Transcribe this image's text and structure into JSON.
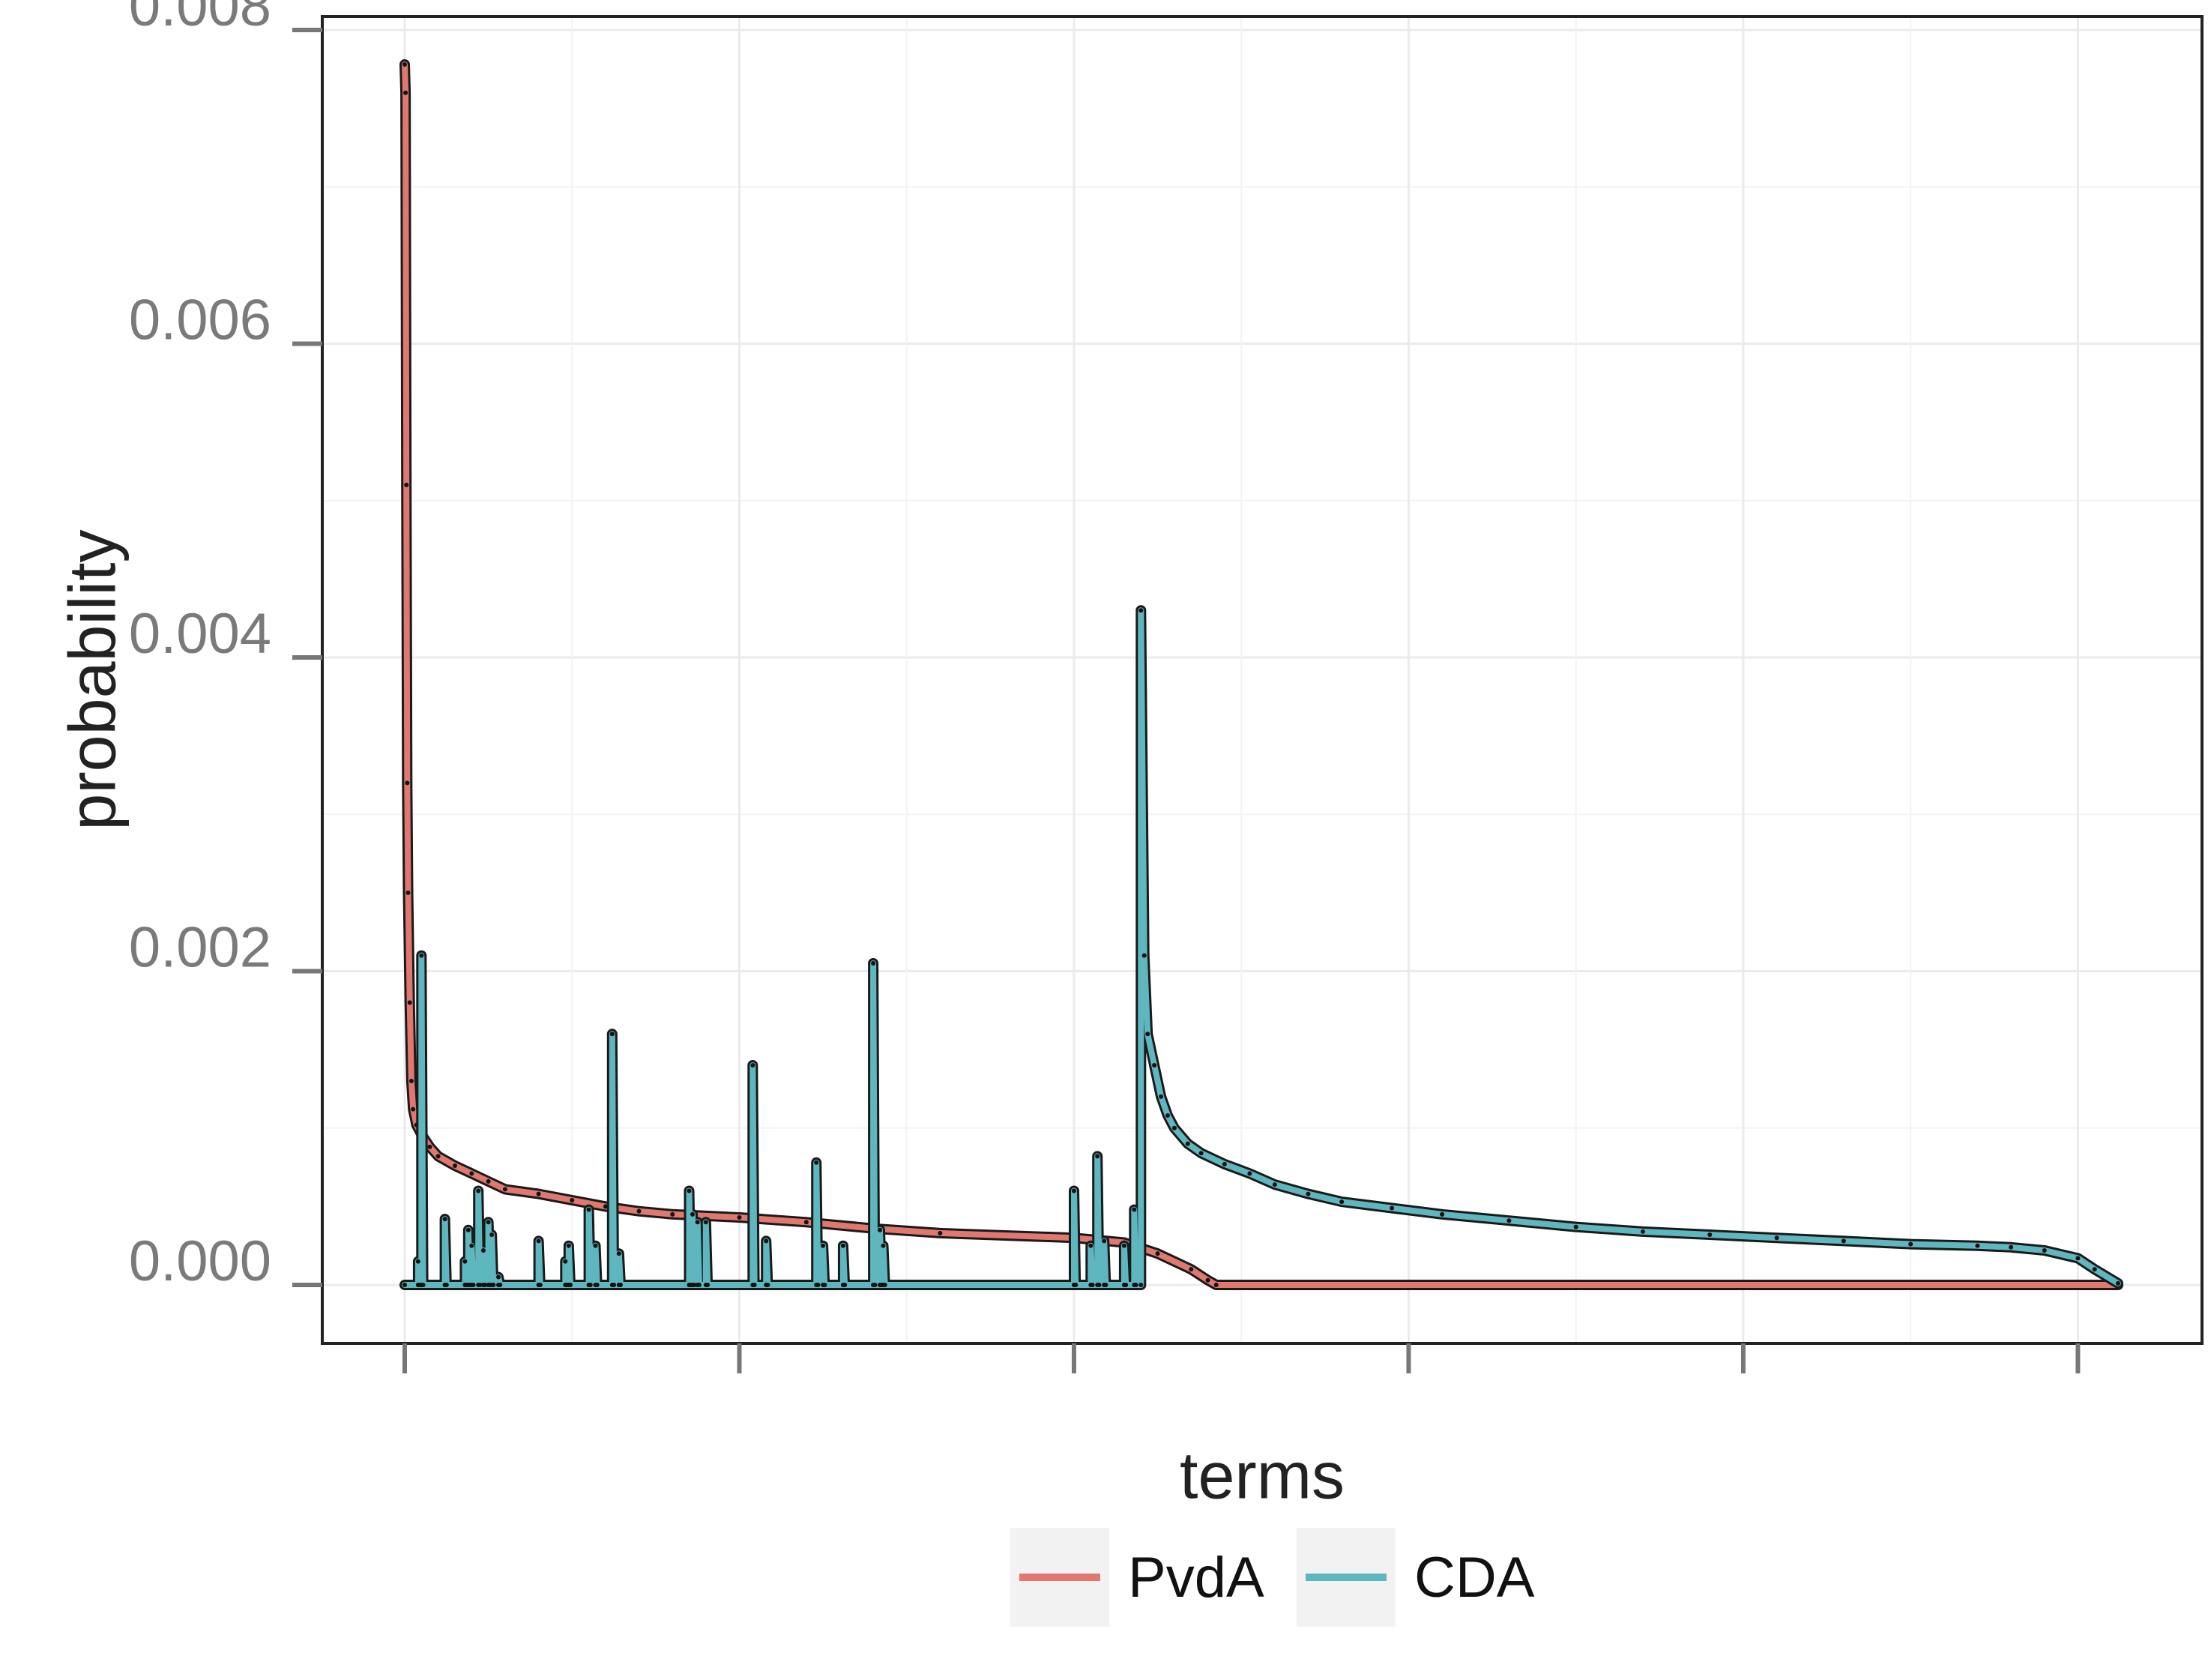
{
  "chart_data": {
    "type": "line",
    "title": "",
    "xlabel": "terms",
    "ylabel": "probability",
    "ylim": [
      0,
      0.008
    ],
    "yticks": [
      "0.000",
      "0.002",
      "0.004",
      "0.006",
      "0.008"
    ],
    "xticks": [
      "",
      "",
      "",
      "",
      "",
      ""
    ],
    "x_range": [
      0,
      1024
    ],
    "grid": true,
    "legend": {
      "position": "bottom"
    },
    "series": [
      {
        "name": "PvdA",
        "color": "#E07870",
        "points": [
          [
            0,
            0.00778
          ],
          [
            0.5,
            0.0076
          ],
          [
            1,
            0.0051
          ],
          [
            1.5,
            0.0032
          ],
          [
            2,
            0.0025
          ],
          [
            3,
            0.0018
          ],
          [
            4,
            0.0013
          ],
          [
            5,
            0.00112
          ],
          [
            7,
            0.00102
          ],
          [
            10,
            0.00096
          ],
          [
            15,
            0.00088
          ],
          [
            20,
            0.00082
          ],
          [
            30,
            0.00076
          ],
          [
            40,
            0.00071
          ],
          [
            50,
            0.00066
          ],
          [
            60,
            0.00061
          ],
          [
            80,
            0.00058
          ],
          [
            100,
            0.00054
          ],
          [
            120,
            0.0005
          ],
          [
            140,
            0.00047
          ],
          [
            160,
            0.00045
          ],
          [
            200,
            0.00043
          ],
          [
            240,
            0.0004
          ],
          [
            280,
            0.00036
          ],
          [
            320,
            0.00033
          ],
          [
            400,
            0.0003
          ],
          [
            430,
            0.00027
          ],
          [
            450,
            0.0002
          ],
          [
            470,
            0.0001
          ],
          [
            480,
            3e-05
          ],
          [
            485,
            0.0
          ],
          [
            1024,
            0.0
          ]
        ]
      },
      {
        "name": "CDA",
        "color": "#5EB7BF",
        "points": [
          [
            0,
            0.0
          ],
          [
            8,
            0.0
          ],
          [
            8,
            0.00015
          ],
          [
            9,
            0.0
          ],
          [
            10,
            0.0
          ],
          [
            10,
            0.0021
          ],
          [
            11,
            0.0
          ],
          [
            24,
            0.0
          ],
          [
            24,
            0.00042
          ],
          [
            25,
            0.0
          ],
          [
            36,
            0.0
          ],
          [
            36,
            0.00015
          ],
          [
            37,
            0.0
          ],
          [
            38,
            0.0
          ],
          [
            38,
            0.00035
          ],
          [
            39,
            0.0
          ],
          [
            40,
            0.0
          ],
          [
            40,
            0.00025
          ],
          [
            41,
            0.0
          ],
          [
            44,
            0.0
          ],
          [
            44,
            0.0006
          ],
          [
            45,
            0.0
          ],
          [
            47,
            0.0
          ],
          [
            47,
            0.00022
          ],
          [
            48,
            0.0
          ],
          [
            50,
            0.0
          ],
          [
            50,
            0.0004
          ],
          [
            51,
            0.0
          ],
          [
            52,
            0.0
          ],
          [
            52,
            0.00032
          ],
          [
            53,
            0.0
          ],
          [
            56,
            0.0
          ],
          [
            56,
            5e-05
          ],
          [
            57,
            0.0
          ],
          [
            80,
            0.0
          ],
          [
            80,
            0.00028
          ],
          [
            81,
            0.0
          ],
          [
            96,
            0.0
          ],
          [
            96,
            0.00015
          ],
          [
            97,
            0.0
          ],
          [
            98,
            0.0
          ],
          [
            98,
            0.00025
          ],
          [
            99,
            0.0
          ],
          [
            110,
            0.0
          ],
          [
            110,
            0.00048
          ],
          [
            111,
            0.0
          ],
          [
            114,
            0.0
          ],
          [
            114,
            0.00025
          ],
          [
            115,
            0.0
          ],
          [
            124,
            0.0
          ],
          [
            124,
            0.0016
          ],
          [
            125,
            0.0
          ],
          [
            128,
            0.0
          ],
          [
            128,
            0.0002
          ],
          [
            129,
            0.0
          ],
          [
            170,
            0.0
          ],
          [
            170,
            0.0006
          ],
          [
            171,
            0.0
          ],
          [
            172,
            0.0
          ],
          [
            172,
            0.00045
          ],
          [
            173,
            0.0
          ],
          [
            175,
            0.0
          ],
          [
            175,
            0.0004
          ],
          [
            176,
            0.0
          ],
          [
            180,
            0.0
          ],
          [
            180,
            0.0004
          ],
          [
            181,
            0.0
          ],
          [
            208,
            0.0
          ],
          [
            208,
            0.0014
          ],
          [
            209,
            0.0
          ],
          [
            216,
            0.0
          ],
          [
            216,
            0.00028
          ],
          [
            217,
            0.0
          ],
          [
            246,
            0.0
          ],
          [
            246,
            0.00078
          ],
          [
            247,
            0.0
          ],
          [
            250,
            0.0
          ],
          [
            250,
            0.00025
          ],
          [
            251,
            0.0
          ],
          [
            262,
            0.0
          ],
          [
            262,
            0.00025
          ],
          [
            263,
            0.0
          ],
          [
            280,
            0.0
          ],
          [
            280,
            0.00205
          ],
          [
            281,
            0.0
          ],
          [
            284,
            0.0
          ],
          [
            284,
            0.00035
          ],
          [
            285,
            0.0
          ],
          [
            286,
            0.0
          ],
          [
            286,
            0.00025
          ],
          [
            287,
            0.0
          ],
          [
            400,
            0.0
          ],
          [
            400,
            0.0006
          ],
          [
            401,
            0.0
          ],
          [
            410,
            0.0
          ],
          [
            410,
            0.00025
          ],
          [
            411,
            0.0
          ],
          [
            414,
            0.0
          ],
          [
            414,
            0.00082
          ],
          [
            415,
            0.0
          ],
          [
            418,
            0.0
          ],
          [
            418,
            0.00028
          ],
          [
            419,
            0.0
          ],
          [
            430,
            0.0
          ],
          [
            430,
            0.00025
          ],
          [
            431,
            0.0
          ],
          [
            436,
            0.0
          ],
          [
            436,
            0.00048
          ],
          [
            437,
            0.0
          ],
          [
            440,
            0.0
          ],
          [
            440,
            0.0043
          ],
          [
            442,
            0.0021
          ],
          [
            444,
            0.0016
          ],
          [
            448,
            0.0014
          ],
          [
            452,
            0.0012
          ],
          [
            456,
            0.00108
          ],
          [
            460,
            0.001
          ],
          [
            468,
            0.0009
          ],
          [
            476,
            0.00084
          ],
          [
            490,
            0.00077
          ],
          [
            505,
            0.00071
          ],
          [
            520,
            0.00064
          ],
          [
            540,
            0.00058
          ],
          [
            560,
            0.00053
          ],
          [
            590,
            0.00049
          ],
          [
            620,
            0.00045
          ],
          [
            660,
            0.00041
          ],
          [
            700,
            0.00037
          ],
          [
            740,
            0.00034
          ],
          [
            780,
            0.00032
          ],
          [
            820,
            0.0003
          ],
          [
            860,
            0.00028
          ],
          [
            900,
            0.00026
          ],
          [
            940,
            0.00025
          ],
          [
            960,
            0.00024
          ],
          [
            980,
            0.00022
          ],
          [
            1000,
            0.00017
          ],
          [
            1010,
            0.0001
          ],
          [
            1024,
            1e-05
          ]
        ]
      }
    ]
  }
}
